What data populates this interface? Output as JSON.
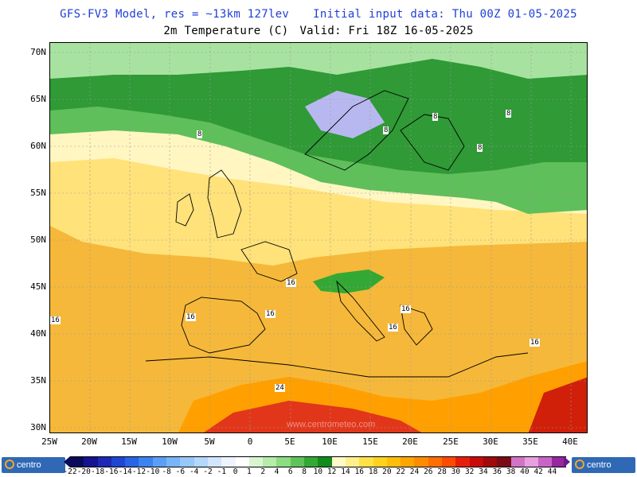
{
  "header": {
    "model_label": "GFS-FV3 Model, res = ~13km 127lev",
    "init_label": "Initial input data: Thu 00Z 01-05-2025",
    "field_label": "2m Temperature (C)",
    "valid_label": "Valid: Fri 18Z 16-05-2025"
  },
  "axes": {
    "lat_labels": [
      "70N",
      "65N",
      "60N",
      "55N",
      "50N",
      "45N",
      "40N",
      "35N",
      "30N"
    ],
    "lon_labels": [
      "25W",
      "20W",
      "15W",
      "10W",
      "5W",
      "0",
      "5E",
      "10E",
      "15E",
      "20E",
      "25E",
      "30E",
      "35E",
      "40E"
    ]
  },
  "colorbar": {
    "labels": [
      "-22",
      "-20",
      "-18",
      "-16",
      "-14",
      "-12",
      "-10",
      "-8",
      "-6",
      "-4",
      "-2",
      "-1",
      "0",
      "1",
      "2",
      "4",
      "6",
      "8",
      "10",
      "12",
      "14",
      "16",
      "18",
      "20",
      "22",
      "24",
      "26",
      "28",
      "30",
      "32",
      "34",
      "36",
      "38",
      "40",
      "42",
      "44"
    ],
    "colors": [
      "#0a0a5a",
      "#141490",
      "#1e28b4",
      "#1e46d2",
      "#2864e6",
      "#3c82f0",
      "#5a9ff5",
      "#78b4f8",
      "#96c8fa",
      "#b4d7fc",
      "#d2e6fd",
      "#eef4ff",
      "#ffffff",
      "#d8f5d0",
      "#b4ecaa",
      "#8cdc82",
      "#5ec45a",
      "#34a834",
      "#108c1c",
      "#fffbc8",
      "#fff08c",
      "#ffe146",
      "#ffd21e",
      "#ffbe0a",
      "#ffa500",
      "#ff8c00",
      "#ff6e00",
      "#ff4b00",
      "#e61e0a",
      "#c80a0a",
      "#a00a0a",
      "#7a0a14",
      "#d273c8",
      "#e6a0e0",
      "#c864c8",
      "#9628a0"
    ]
  },
  "contour_labels": [
    "8",
    "8",
    "8",
    "8",
    "8",
    "16",
    "16",
    "16",
    "16",
    "16",
    "16",
    "16",
    "24"
  ],
  "watermark": "www.centrometeo.com",
  "logos": {
    "left": "centro",
    "right": "centro"
  },
  "colors": {
    "title_blue": "#1f3fd8",
    "ocean_north_green": "#2e9a3a",
    "ocean_temperate": "#ffe89a",
    "ocean_warm": "#ffcf3a",
    "africa_hot": "#e2361a"
  }
}
